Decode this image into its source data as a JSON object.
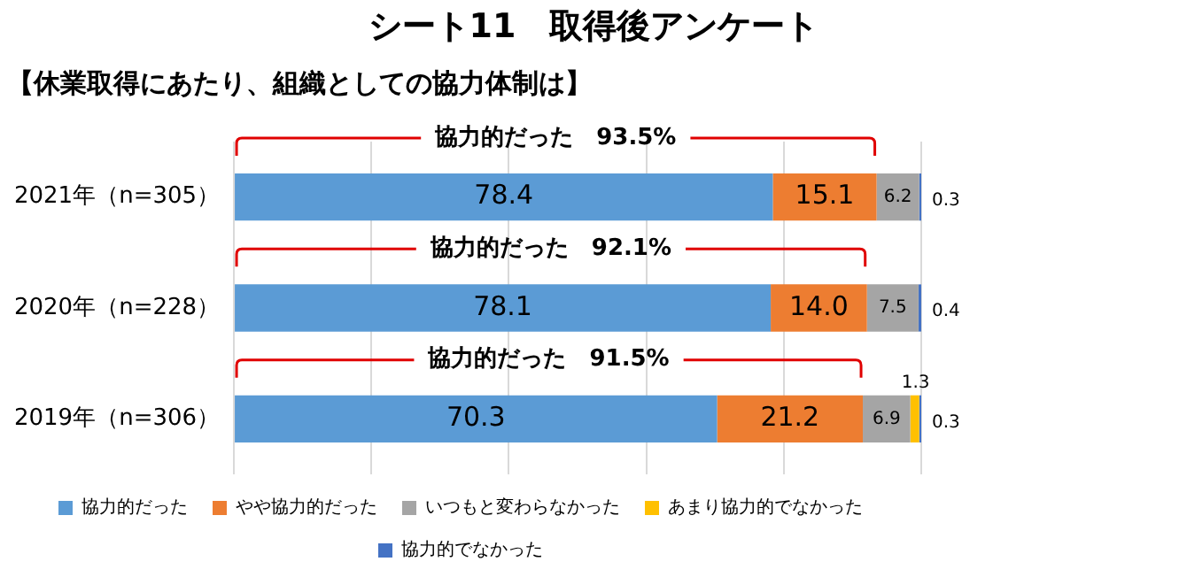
{
  "chart_data": {
    "type": "bar",
    "orientation": "horizontal",
    "stacked": true,
    "title": "シート11　取得後アンケート",
    "subtitle": "【休業取得にあたり、組織としての協力体制は】",
    "categories": [
      "2021年（n=305）",
      "2020年（n=228）",
      "2019年（n=306）"
    ],
    "series": [
      {
        "name": "協力的だった",
        "color": "#5b9bd5",
        "values": [
          78.4,
          78.1,
          70.3
        ],
        "value_labels": [
          "78.4",
          "78.1",
          "70.3"
        ]
      },
      {
        "name": "やや協力的だった",
        "color": "#ed7d31",
        "values": [
          15.1,
          14.0,
          21.2
        ],
        "value_labels": [
          "15.1",
          "14.0",
          "21.2"
        ]
      },
      {
        "name": "いつもと変わらなかった",
        "color": "#a5a5a5",
        "values": [
          6.2,
          7.5,
          6.9
        ],
        "value_labels": [
          "6.2",
          "7.5",
          "6.9"
        ]
      },
      {
        "name": "あまり協力的でなかった",
        "color": "#ffc000",
        "values": [
          null,
          null,
          1.3
        ],
        "value_labels": [
          null,
          null,
          "1.3"
        ]
      },
      {
        "name": "協力的でなかった",
        "color": "#4472c4",
        "values": [
          0.3,
          0.4,
          0.3
        ],
        "value_labels": [
          "0.3",
          "0.4",
          "0.3"
        ]
      }
    ],
    "xlim": [
      0,
      100
    ],
    "xticks": [
      0,
      20,
      40,
      60,
      80,
      100
    ],
    "tick_labels": "y",
    "grid": "x",
    "legend": "bottom",
    "annotations": [
      "協力的だった　93.5%",
      "協力的だった　92.1%",
      "協力的だった　91.5%"
    ]
  }
}
